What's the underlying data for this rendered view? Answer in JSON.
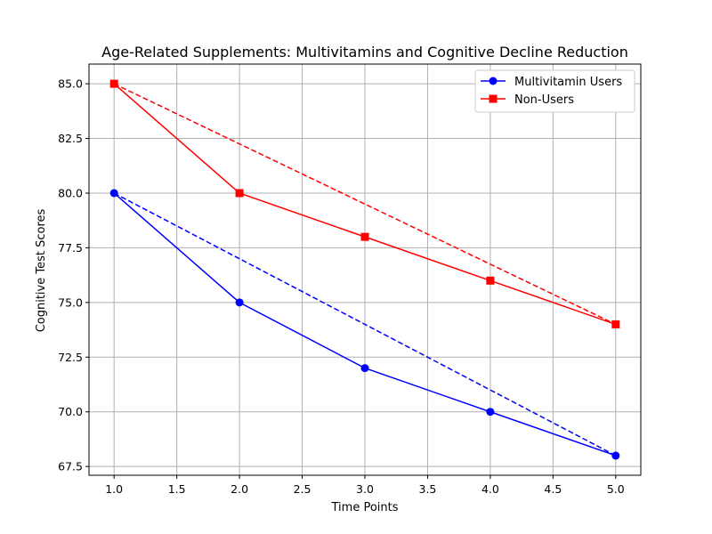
{
  "chart_data": {
    "type": "line",
    "title": "Age-Related Supplements: Multivitamins and Cognitive Decline Reduction",
    "xlabel": "Time Points",
    "ylabel": "Cognitive Test Scores",
    "xlim": [
      0.8,
      5.2
    ],
    "ylim": [
      67.1,
      85.9
    ],
    "xticks": [
      1.0,
      1.5,
      2.0,
      2.5,
      3.0,
      3.5,
      4.0,
      4.5,
      5.0
    ],
    "xtick_labels": [
      "1.0",
      "1.5",
      "2.0",
      "2.5",
      "3.0",
      "3.5",
      "4.0",
      "4.5",
      "5.0"
    ],
    "yticks": [
      67.5,
      70.0,
      72.5,
      75.0,
      77.5,
      80.0,
      82.5,
      85.0
    ],
    "ytick_labels": [
      "67.5",
      "70.0",
      "72.5",
      "75.0",
      "77.5",
      "80.0",
      "82.5",
      "85.0"
    ],
    "grid": true,
    "legend_position": "top-right",
    "x": [
      1,
      2,
      3,
      4,
      5
    ],
    "series": [
      {
        "name": "Multivitamin Users",
        "values": [
          80,
          75,
          72,
          70,
          68
        ],
        "color": "#0000ff",
        "marker": "circle"
      },
      {
        "name": "Non-Users",
        "values": [
          85,
          80,
          78,
          76,
          74
        ],
        "color": "#ff0000",
        "marker": "square"
      }
    ],
    "trend_lines": [
      {
        "color": "#0000ff",
        "style": "dashed",
        "x": [
          1,
          5
        ],
        "values": [
          80,
          68
        ]
      },
      {
        "color": "#ff0000",
        "style": "dashed",
        "x": [
          1,
          5
        ],
        "values": [
          85,
          74
        ]
      }
    ]
  }
}
